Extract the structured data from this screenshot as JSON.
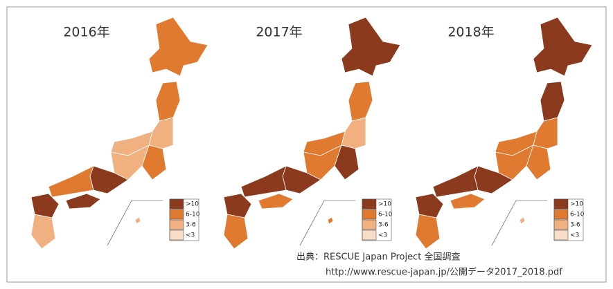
{
  "maps": [
    {
      "title": "2016年",
      "regions": [
        "6-10",
        "6-10",
        "3-6",
        "6-10",
        "3-6",
        "3-6",
        ">10",
        "6-10",
        ">10",
        ">10",
        "3-6",
        "3-6"
      ]
    },
    {
      "title": "2017年",
      "regions": [
        ">10",
        "6-10",
        "3-6",
        ">10",
        "6-10",
        "6-10",
        ">10",
        ">10",
        "6-10",
        ">10",
        "6-10",
        "6-10"
      ]
    },
    {
      "title": "2018年",
      "regions": [
        ">10",
        ">10",
        "6-10",
        "6-10",
        "6-10",
        "6-10",
        ">10",
        ">10",
        "6-10",
        ">10",
        "6-10",
        "3-6"
      ]
    }
  ],
  "legend": [
    {
      "label": ">10",
      "color": "#8b3a1e"
    },
    {
      "label": "6-10",
      "color": "#e07a30"
    },
    {
      "label": "3-6",
      "color": "#f0b080"
    },
    {
      "label": "<3",
      "color": "#f9ddc6"
    }
  ],
  "source": {
    "line1": "出典：RESCUE Japan Project 全国調査",
    "line2": "http://www.rescue-japan.jp/公開データ2017_2018.pdf"
  }
}
